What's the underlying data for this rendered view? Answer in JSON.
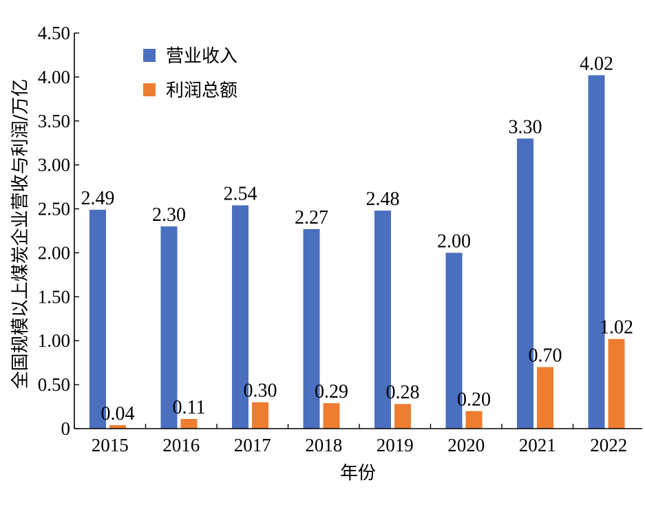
{
  "chart_data": {
    "type": "bar",
    "categories": [
      "2015",
      "2016",
      "2017",
      "2018",
      "2019",
      "2020",
      "2021",
      "2022"
    ],
    "series": [
      {
        "name": "营业收入",
        "color": "#4a6fbf",
        "values": [
          2.49,
          2.3,
          2.54,
          2.27,
          2.48,
          2.0,
          3.3,
          4.02
        ],
        "labels": [
          "2.49",
          "2.30",
          "2.54",
          "2.27",
          "2.48",
          "2.00",
          "3.30",
          "4.02"
        ]
      },
      {
        "name": "利润总额",
        "color": "#ed7d31",
        "values": [
          0.04,
          0.11,
          0.3,
          0.29,
          0.28,
          0.2,
          0.7,
          1.02
        ],
        "labels": [
          "0.04",
          "0.11",
          "0.30",
          "0.29",
          "0.28",
          "0.20",
          "0.70",
          "1.02"
        ]
      }
    ],
    "xlabel": "年份",
    "ylabel": "全国规模以上煤炭企业营收与利润/万亿",
    "ylim": [
      0,
      4.5
    ],
    "yticks": [
      {
        "value": 0,
        "label": "0"
      },
      {
        "value": 0.5,
        "label": "0.50"
      },
      {
        "value": 1.0,
        "label": "1.00"
      },
      {
        "value": 1.5,
        "label": "1.50"
      },
      {
        "value": 2.0,
        "label": "2.00"
      },
      {
        "value": 2.5,
        "label": "2.50"
      },
      {
        "value": 3.0,
        "label": "3.00"
      },
      {
        "value": 3.5,
        "label": "3.50"
      },
      {
        "value": 4.0,
        "label": "4.00"
      },
      {
        "value": 4.5,
        "label": "4.50"
      }
    ],
    "legend_position": "top-left",
    "grid": false
  }
}
